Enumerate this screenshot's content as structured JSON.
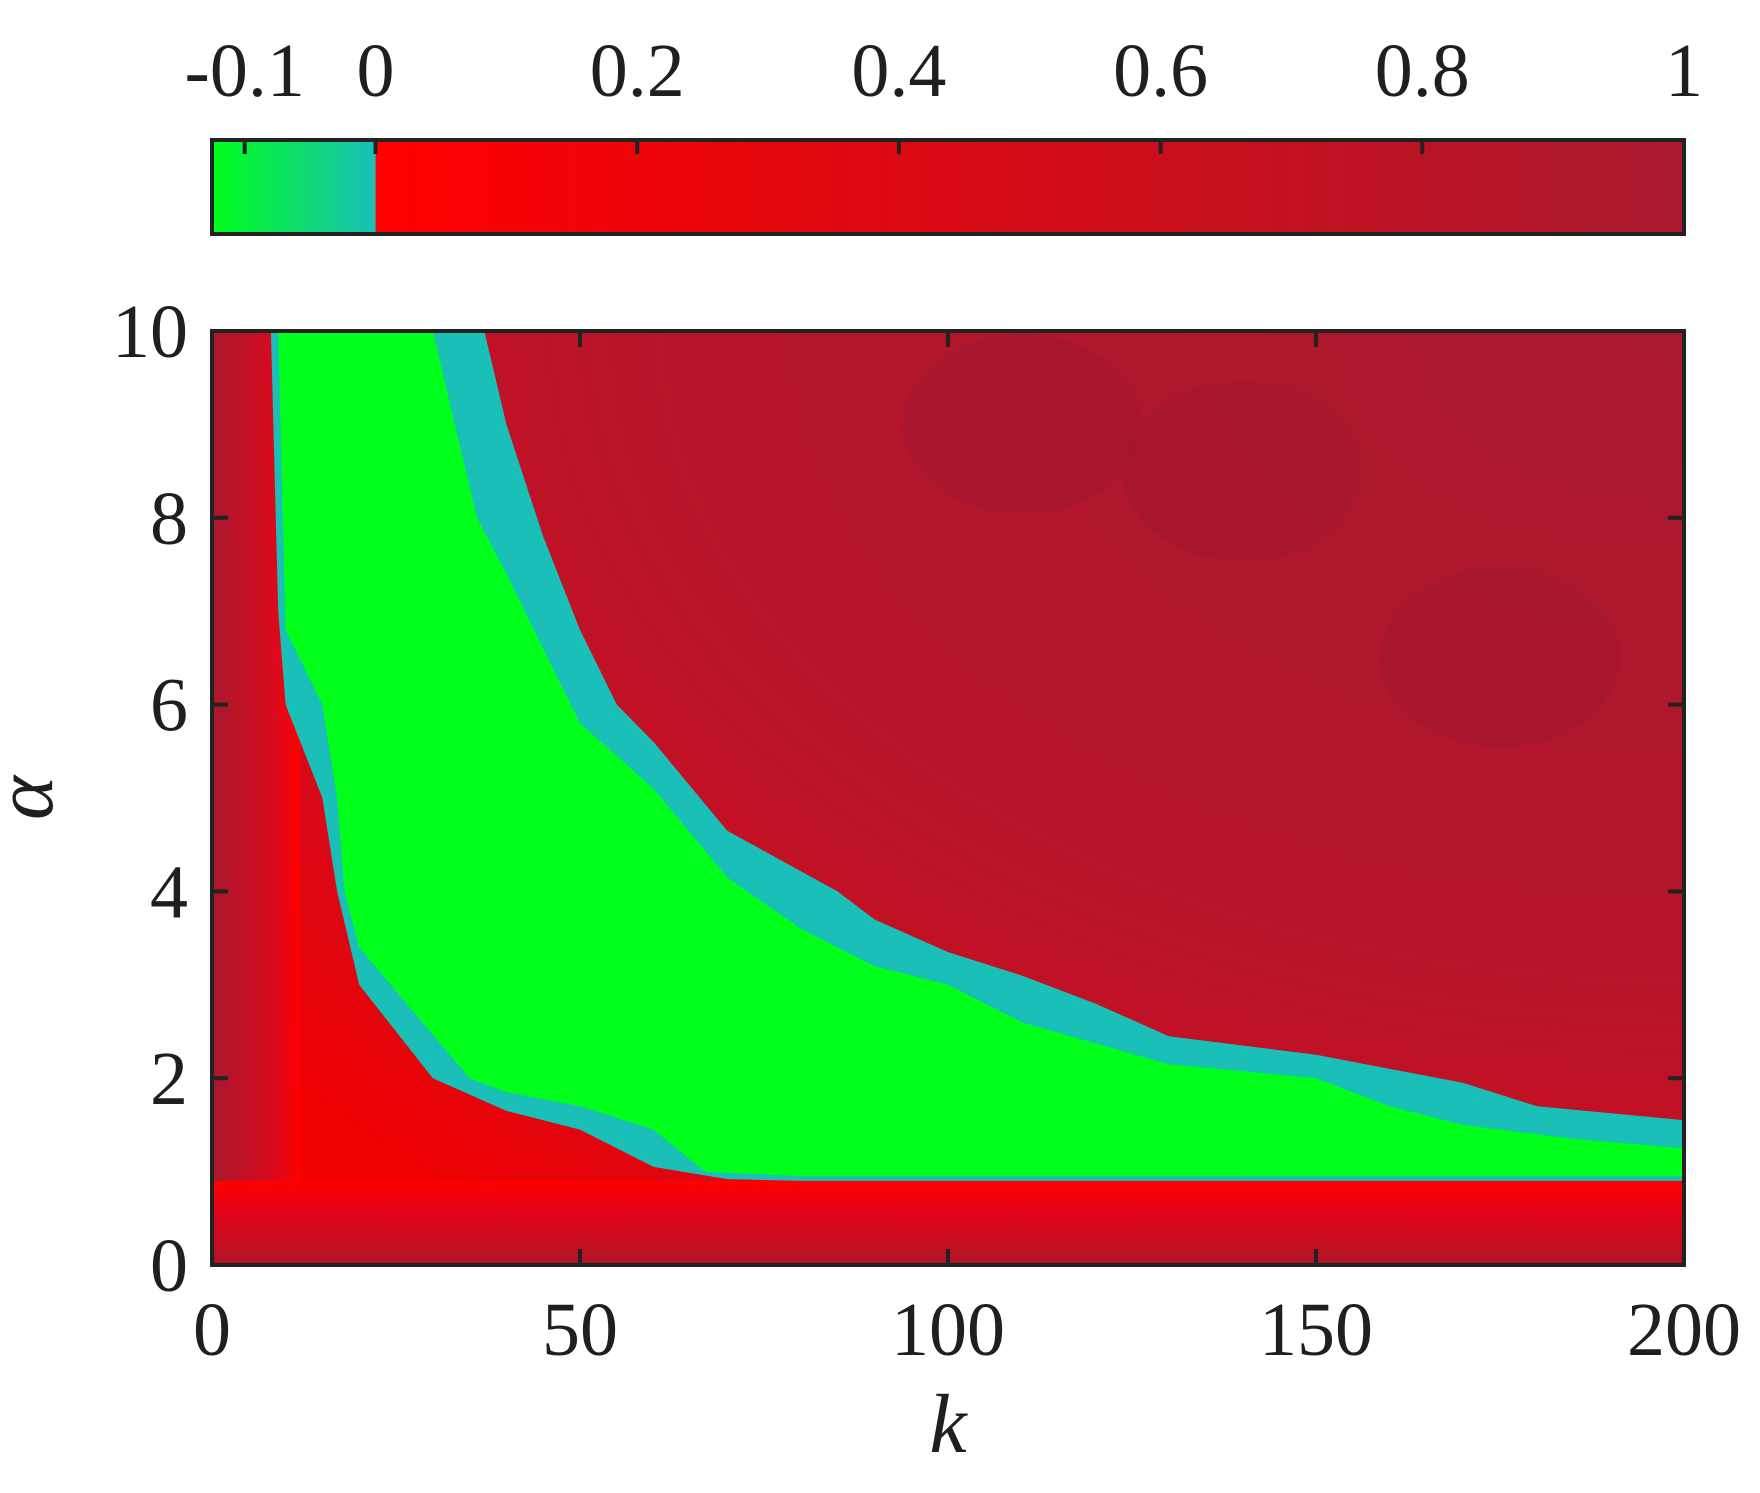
{
  "chart_data": {
    "type": "heatmap",
    "xlabel": "k",
    "ylabel": "α",
    "xlim": [
      0,
      200
    ],
    "ylim": [
      0,
      10
    ],
    "x_ticks": [
      {
        "value": 0,
        "label": "0"
      },
      {
        "value": 50,
        "label": "50"
      },
      {
        "value": 100,
        "label": "100"
      },
      {
        "value": 150,
        "label": "150"
      },
      {
        "value": 200,
        "label": "200"
      }
    ],
    "y_ticks": [
      {
        "value": 0,
        "label": "0"
      },
      {
        "value": 2,
        "label": "2"
      },
      {
        "value": 4,
        "label": "4"
      },
      {
        "value": 6,
        "label": "6"
      },
      {
        "value": 8,
        "label": "8"
      },
      {
        "value": 10,
        "label": "10"
      }
    ],
    "colorbar": {
      "location": "top",
      "range": [
        -0.125,
        1
      ],
      "ticks": [
        {
          "value": -0.1,
          "label": "-0.1"
        },
        {
          "value": 0,
          "label": "0"
        },
        {
          "value": 0.2,
          "label": "0.2"
        },
        {
          "value": 0.4,
          "label": "0.4"
        },
        {
          "value": 0.6,
          "label": "0.6"
        },
        {
          "value": 0.8,
          "label": "0.8"
        },
        {
          "value": 1,
          "label": "1"
        }
      ],
      "negative_colors": [
        "#00ff1a",
        "#1abfb8"
      ],
      "positive_colors": [
        "#ff0000",
        "#a8182e"
      ]
    },
    "grid": false,
    "regions": {
      "inner_green_boundary": [
        {
          "k": 9,
          "alpha": 10
        },
        {
          "k": 10,
          "alpha": 6.8
        },
        {
          "k": 15,
          "alpha": 6.0
        },
        {
          "k": 17,
          "alpha": 5.0
        },
        {
          "k": 18,
          "alpha": 4.0
        },
        {
          "k": 20,
          "alpha": 3.4
        },
        {
          "k": 35,
          "alpha": 2.0
        },
        {
          "k": 40,
          "alpha": 1.85
        },
        {
          "k": 50,
          "alpha": 1.7
        },
        {
          "k": 60,
          "alpha": 1.45
        },
        {
          "k": 67,
          "alpha": 1.0
        },
        {
          "k": 80,
          "alpha": 0.95
        },
        {
          "k": 100,
          "alpha": 0.95
        },
        {
          "k": 150,
          "alpha": 0.95
        },
        {
          "k": 200,
          "alpha": 0.95
        }
      ],
      "outer_green_boundary": [
        {
          "k": 200,
          "alpha": 1.25
        },
        {
          "k": 185,
          "alpha": 1.35
        },
        {
          "k": 170,
          "alpha": 1.5
        },
        {
          "k": 160,
          "alpha": 1.7
        },
        {
          "k": 150,
          "alpha": 2.0
        },
        {
          "k": 130,
          "alpha": 2.15
        },
        {
          "k": 110,
          "alpha": 2.6
        },
        {
          "k": 100,
          "alpha": 3.0
        },
        {
          "k": 90,
          "alpha": 3.2
        },
        {
          "k": 80,
          "alpha": 3.6
        },
        {
          "k": 70,
          "alpha": 4.15
        },
        {
          "k": 60,
          "alpha": 5.1
        },
        {
          "k": 50,
          "alpha": 5.8
        },
        {
          "k": 45,
          "alpha": 6.6
        },
        {
          "k": 40,
          "alpha": 7.4
        },
        {
          "k": 36,
          "alpha": 8.0
        },
        {
          "k": 33,
          "alpha": 9.0
        },
        {
          "k": 30,
          "alpha": 10
        }
      ],
      "zero_contour": [
        {
          "k": 8,
          "alpha": 10
        },
        {
          "k": 9,
          "alpha": 7.0
        },
        {
          "k": 10,
          "alpha": 6.0
        },
        {
          "k": 15,
          "alpha": 5.0
        },
        {
          "k": 17,
          "alpha": 4.0
        },
        {
          "k": 20,
          "alpha": 3.0
        },
        {
          "k": 30,
          "alpha": 2.0
        },
        {
          "k": 40,
          "alpha": 1.65
        },
        {
          "k": 50,
          "alpha": 1.45
        },
        {
          "k": 60,
          "alpha": 1.05
        },
        {
          "k": 70,
          "alpha": 0.92
        },
        {
          "k": 80,
          "alpha": 0.9
        },
        {
          "k": 100,
          "alpha": 0.9
        },
        {
          "k": 150,
          "alpha": 0.9
        },
        {
          "k": 200,
          "alpha": 0.9
        }
      ],
      "outer_teal_boundary": [
        {
          "k": 200,
          "alpha": 1.55
        },
        {
          "k": 180,
          "alpha": 1.7
        },
        {
          "k": 170,
          "alpha": 1.95
        },
        {
          "k": 150,
          "alpha": 2.25
        },
        {
          "k": 130,
          "alpha": 2.45
        },
        {
          "k": 120,
          "alpha": 2.8
        },
        {
          "k": 110,
          "alpha": 3.1
        },
        {
          "k": 100,
          "alpha": 3.35
        },
        {
          "k": 90,
          "alpha": 3.7
        },
        {
          "k": 85,
          "alpha": 4.0
        },
        {
          "k": 70,
          "alpha": 4.65
        },
        {
          "k": 60,
          "alpha": 5.6
        },
        {
          "k": 55,
          "alpha": 6.0
        },
        {
          "k": 50,
          "alpha": 6.8
        },
        {
          "k": 45,
          "alpha": 7.8
        },
        {
          "k": 40,
          "alpha": 9.0
        },
        {
          "k": 37,
          "alpha": 10
        }
      ]
    },
    "dark_patches": [
      {
        "k": 110,
        "alpha": 9.0
      },
      {
        "k": 140,
        "alpha": 8.5
      },
      {
        "k": 175,
        "alpha": 6.5
      }
    ]
  }
}
